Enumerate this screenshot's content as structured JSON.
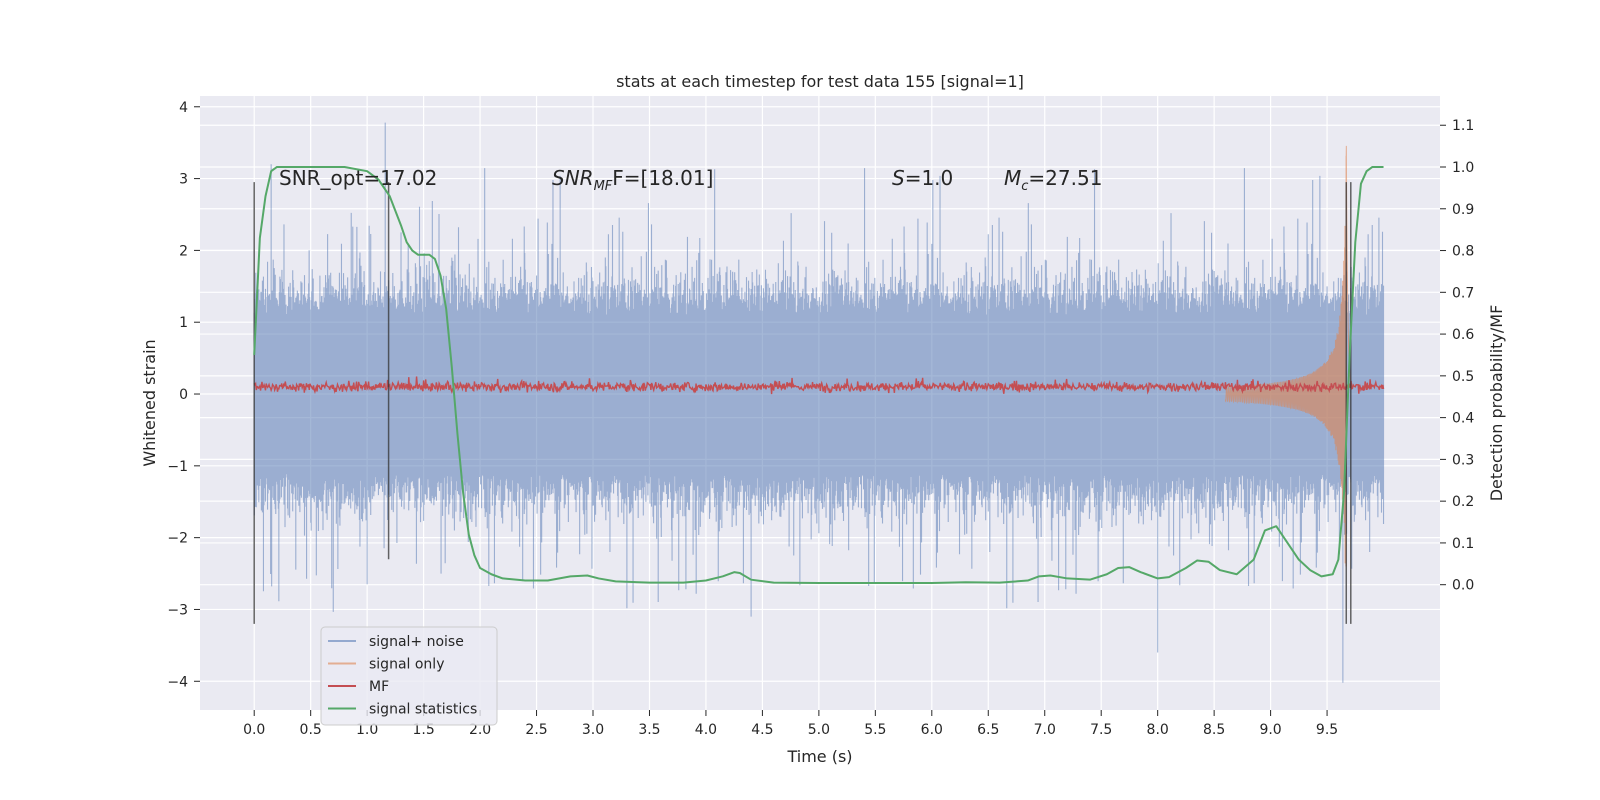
{
  "chart_data": {
    "type": "line",
    "title": "stats at each timestep for test data 155 [signal=1]",
    "xlabel": "Time (s)",
    "ylabel": "Whitened strain",
    "y2label": "Detection probability/MF",
    "xlim": [
      -0.48,
      10.5
    ],
    "ylim": [
      -4.4,
      4.15
    ],
    "y2lim": [
      -0.3,
      1.17
    ],
    "x_ticks": [
      "0.0",
      "0.5",
      "1.0",
      "1.5",
      "2.0",
      "2.5",
      "3.0",
      "3.5",
      "4.0",
      "4.5",
      "5.0",
      "5.5",
      "6.0",
      "6.5",
      "7.0",
      "7.5",
      "8.0",
      "8.5",
      "9.0",
      "9.5"
    ],
    "y_ticks": [
      "−4",
      "−3",
      "−2",
      "−1",
      "0",
      "1",
      "2",
      "3",
      "4"
    ],
    "y2_ticks": [
      "0.0",
      "0.1",
      "0.2",
      "0.3",
      "0.4",
      "0.5",
      "0.6",
      "0.7",
      "0.8",
      "0.9",
      "1.0",
      "1.1"
    ],
    "grid": true,
    "legend_position": "lower-left",
    "annotations": {
      "snr_opt": "SNR_opt=17.02",
      "snr_mf_main": "SNR",
      "snr_mf_sub": "MF",
      "snr_mf_rest": "F=[18.01]",
      "s_var": "S",
      "s_rest": "=1.0",
      "mc_var": "M",
      "mc_sub": "c",
      "mc_rest": "=27.51"
    },
    "noise_envelope": {
      "t": [
        0.0,
        1.0,
        2.0,
        3.0,
        4.0,
        5.0,
        6.0,
        7.0,
        8.0,
        9.0,
        10.0
      ],
      "upper_typical": [
        1.6,
        1.7,
        1.6,
        1.7,
        1.6,
        1.7,
        1.7,
        1.6,
        1.7,
        1.7,
        1.6
      ],
      "lower_typical": [
        -1.6,
        -1.7,
        -1.6,
        -1.7,
        -1.7,
        -1.6,
        -1.7,
        -1.6,
        -1.7,
        -1.7,
        -1.6
      ],
      "peak_max": 3.78,
      "peak_min": -4.02
    },
    "vertical_markers": [
      {
        "x": 0.0,
        "y_range": [
          -3.2,
          2.95
        ]
      },
      {
        "x": 1.19,
        "y_range": [
          -2.3,
          2.95
        ]
      },
      {
        "x": 9.67,
        "y_range": [
          -3.2,
          2.95
        ]
      },
      {
        "x": 9.71,
        "y_range": [
          -3.2,
          2.95
        ]
      }
    ],
    "series": [
      {
        "name": "signal+ noise",
        "color": "#4c72b0",
        "axis": "left",
        "kind": "noise_band"
      },
      {
        "name": "signal only",
        "color": "#dd8452",
        "axis": "left",
        "kind": "chirp",
        "chirp_peak_time": 9.67,
        "chirp_peak_amp": 3.7
      },
      {
        "name": "MF",
        "color": "#c44e52",
        "axis": "left",
        "kind": "flat_noise",
        "level": 0.1
      },
      {
        "name": "signal statistics",
        "color": "#55a868",
        "axis": "right",
        "kind": "line",
        "x": [
          0.0,
          0.05,
          0.1,
          0.15,
          0.2,
          0.3,
          0.5,
          0.8,
          1.0,
          1.1,
          1.2,
          1.3,
          1.35,
          1.4,
          1.45,
          1.5,
          1.55,
          1.6,
          1.65,
          1.7,
          1.75,
          1.8,
          1.85,
          1.9,
          1.95,
          2.0,
          2.1,
          2.2,
          2.4,
          2.6,
          2.8,
          2.95,
          3.05,
          3.2,
          3.5,
          3.8,
          4.0,
          4.15,
          4.25,
          4.3,
          4.4,
          4.6,
          5.0,
          5.5,
          6.0,
          6.3,
          6.6,
          6.85,
          6.95,
          7.05,
          7.2,
          7.4,
          7.55,
          7.65,
          7.75,
          7.85,
          8.0,
          8.1,
          8.25,
          8.35,
          8.45,
          8.55,
          8.7,
          8.85,
          8.95,
          9.05,
          9.15,
          9.25,
          9.35,
          9.45,
          9.55,
          9.6,
          9.65,
          9.7,
          9.75,
          9.8,
          9.85,
          9.9,
          10.0
        ],
        "y": [
          0.55,
          0.83,
          0.93,
          0.99,
          1.0,
          1.0,
          1.0,
          1.0,
          0.99,
          0.97,
          0.93,
          0.86,
          0.82,
          0.8,
          0.79,
          0.79,
          0.79,
          0.78,
          0.74,
          0.66,
          0.52,
          0.36,
          0.22,
          0.12,
          0.07,
          0.04,
          0.025,
          0.015,
          0.01,
          0.01,
          0.02,
          0.022,
          0.015,
          0.008,
          0.005,
          0.005,
          0.01,
          0.02,
          0.03,
          0.028,
          0.012,
          0.005,
          0.004,
          0.004,
          0.004,
          0.006,
          0.005,
          0.01,
          0.02,
          0.022,
          0.015,
          0.012,
          0.025,
          0.04,
          0.042,
          0.03,
          0.015,
          0.018,
          0.04,
          0.058,
          0.055,
          0.035,
          0.025,
          0.06,
          0.13,
          0.14,
          0.1,
          0.06,
          0.035,
          0.02,
          0.025,
          0.06,
          0.22,
          0.55,
          0.82,
          0.96,
          0.99,
          1.0,
          1.0
        ]
      }
    ]
  }
}
